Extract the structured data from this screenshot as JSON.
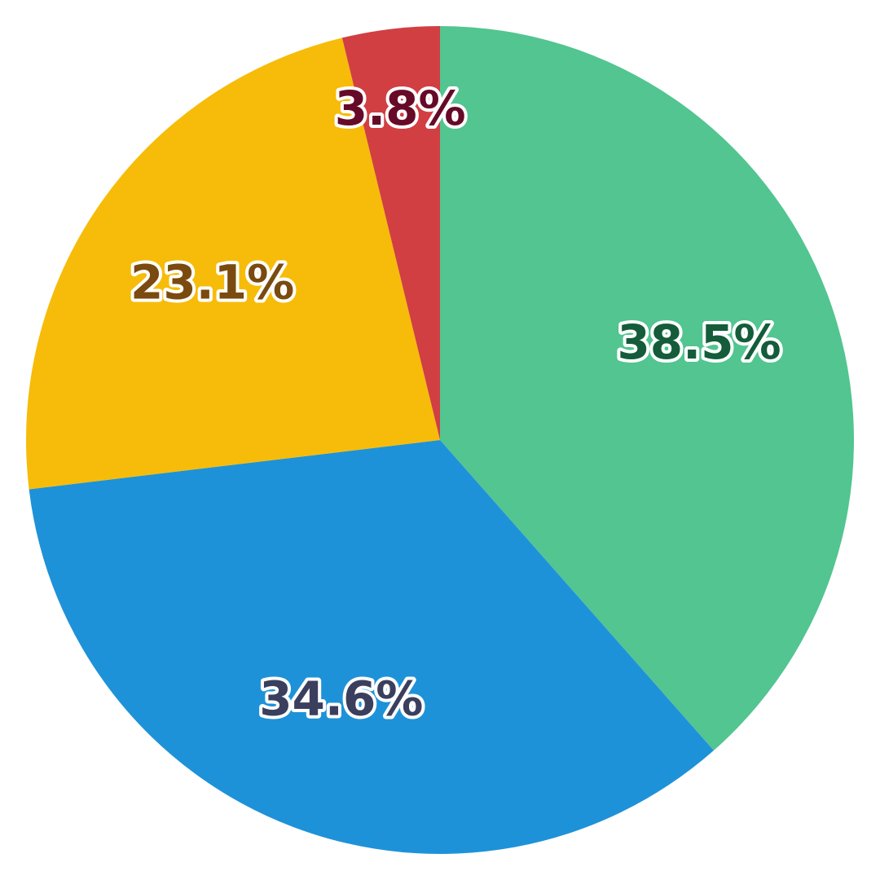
{
  "chart_data": {
    "type": "pie",
    "start_angle_deg": 0,
    "direction": "clockwise",
    "title": "",
    "legend": "none",
    "slices": [
      {
        "label": "38.5%",
        "value": 38.5,
        "color": "#52c590",
        "label_color": "#145c3a"
      },
      {
        "label": "34.6%",
        "value": 34.6,
        "color": "#1e92d8",
        "label_color": "#3b3f5e"
      },
      {
        "label": "23.1%",
        "value": 23.1,
        "color": "#f7bc09",
        "label_color": "#7a4a0f"
      },
      {
        "label": "3.8%",
        "value": 3.8,
        "color": "#d13f42",
        "label_color": "#660a28"
      }
    ]
  }
}
